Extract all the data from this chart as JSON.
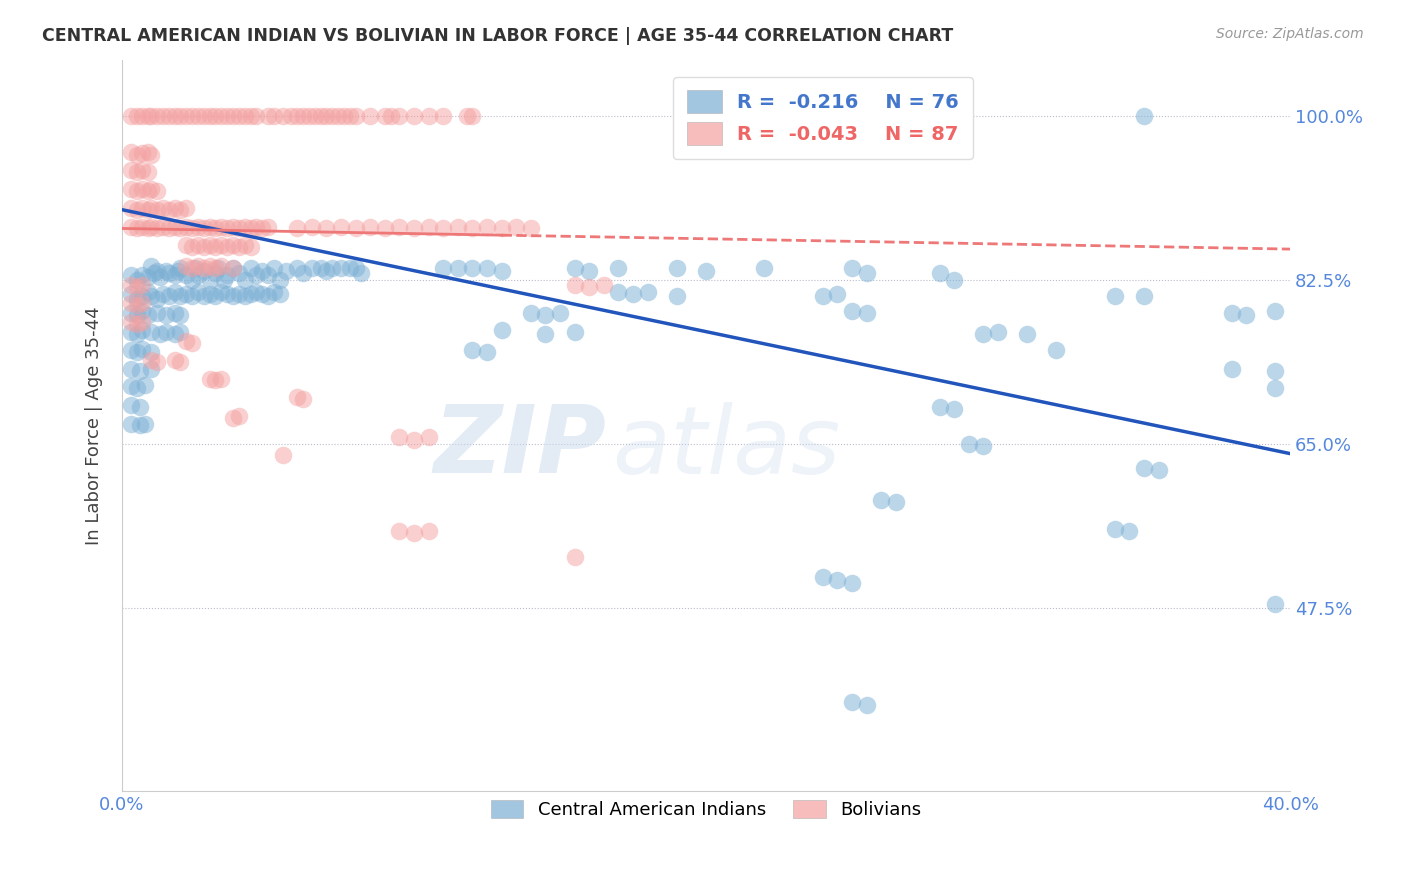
{
  "title": "CENTRAL AMERICAN INDIAN VS BOLIVIAN IN LABOR FORCE | AGE 35-44 CORRELATION CHART",
  "source": "Source: ZipAtlas.com",
  "ylabel": "In Labor Force | Age 35-44",
  "x_min": 0.0,
  "x_max": 0.4,
  "y_min": 0.28,
  "y_max": 1.06,
  "y_ticks": [
    0.475,
    0.65,
    0.825,
    1.0
  ],
  "y_tick_labels": [
    "47.5%",
    "65.0%",
    "82.5%",
    "100.0%"
  ],
  "legend_blue_label": "Central American Indians",
  "legend_pink_label": "Bolivians",
  "legend_r_blue": "R =  -0.216",
  "legend_n_blue": "N = 76",
  "legend_r_pink": "R =  -0.043",
  "legend_n_pink": "N = 87",
  "blue_color": "#7BAFD4",
  "pink_color": "#F4A0A0",
  "blue_line_color": "#2255BB",
  "pink_line_color": "#EE7777",
  "watermark_zip": "ZIP",
  "watermark_atlas": "atlas",
  "blue_scatter": [
    [
      0.003,
      0.83
    ],
    [
      0.005,
      0.825
    ],
    [
      0.007,
      0.83
    ],
    [
      0.009,
      0.828
    ],
    [
      0.01,
      0.84
    ],
    [
      0.011,
      0.832
    ],
    [
      0.012,
      0.835
    ],
    [
      0.013,
      0.828
    ],
    [
      0.015,
      0.835
    ],
    [
      0.016,
      0.832
    ],
    [
      0.018,
      0.83
    ],
    [
      0.019,
      0.835
    ],
    [
      0.02,
      0.838
    ],
    [
      0.022,
      0.83
    ],
    [
      0.024,
      0.825
    ],
    [
      0.025,
      0.838
    ],
    [
      0.026,
      0.83
    ],
    [
      0.028,
      0.835
    ],
    [
      0.03,
      0.825
    ],
    [
      0.032,
      0.832
    ],
    [
      0.033,
      0.838
    ],
    [
      0.035,
      0.825
    ],
    [
      0.036,
      0.83
    ],
    [
      0.038,
      0.838
    ],
    [
      0.04,
      0.832
    ],
    [
      0.042,
      0.825
    ],
    [
      0.044,
      0.838
    ],
    [
      0.046,
      0.83
    ],
    [
      0.048,
      0.835
    ],
    [
      0.05,
      0.83
    ],
    [
      0.052,
      0.838
    ],
    [
      0.054,
      0.825
    ],
    [
      0.056,
      0.835
    ],
    [
      0.06,
      0.838
    ],
    [
      0.062,
      0.832
    ],
    [
      0.065,
      0.838
    ],
    [
      0.068,
      0.838
    ],
    [
      0.07,
      0.835
    ],
    [
      0.072,
      0.838
    ],
    [
      0.075,
      0.838
    ],
    [
      0.078,
      0.838
    ],
    [
      0.08,
      0.838
    ],
    [
      0.082,
      0.832
    ],
    [
      0.003,
      0.81
    ],
    [
      0.005,
      0.805
    ],
    [
      0.007,
      0.808
    ],
    [
      0.009,
      0.812
    ],
    [
      0.01,
      0.808
    ],
    [
      0.012,
      0.805
    ],
    [
      0.014,
      0.81
    ],
    [
      0.016,
      0.808
    ],
    [
      0.018,
      0.812
    ],
    [
      0.02,
      0.808
    ],
    [
      0.022,
      0.81
    ],
    [
      0.024,
      0.808
    ],
    [
      0.026,
      0.812
    ],
    [
      0.028,
      0.808
    ],
    [
      0.03,
      0.81
    ],
    [
      0.032,
      0.808
    ],
    [
      0.034,
      0.812
    ],
    [
      0.036,
      0.81
    ],
    [
      0.038,
      0.808
    ],
    [
      0.04,
      0.81
    ],
    [
      0.042,
      0.808
    ],
    [
      0.044,
      0.81
    ],
    [
      0.046,
      0.812
    ],
    [
      0.048,
      0.81
    ],
    [
      0.05,
      0.808
    ],
    [
      0.052,
      0.812
    ],
    [
      0.054,
      0.81
    ],
    [
      0.003,
      0.79
    ],
    [
      0.005,
      0.788
    ],
    [
      0.007,
      0.792
    ],
    [
      0.009,
      0.788
    ],
    [
      0.012,
      0.79
    ],
    [
      0.015,
      0.788
    ],
    [
      0.018,
      0.79
    ],
    [
      0.02,
      0.788
    ],
    [
      0.003,
      0.77
    ],
    [
      0.005,
      0.768
    ],
    [
      0.007,
      0.772
    ],
    [
      0.01,
      0.77
    ],
    [
      0.013,
      0.768
    ],
    [
      0.015,
      0.77
    ],
    [
      0.018,
      0.768
    ],
    [
      0.02,
      0.77
    ],
    [
      0.003,
      0.75
    ],
    [
      0.005,
      0.748
    ],
    [
      0.007,
      0.752
    ],
    [
      0.01,
      0.748
    ],
    [
      0.003,
      0.73
    ],
    [
      0.006,
      0.728
    ],
    [
      0.01,
      0.73
    ],
    [
      0.003,
      0.712
    ],
    [
      0.005,
      0.71
    ],
    [
      0.008,
      0.713
    ],
    [
      0.003,
      0.692
    ],
    [
      0.006,
      0.69
    ],
    [
      0.003,
      0.672
    ],
    [
      0.006,
      0.67
    ],
    [
      0.008,
      0.672
    ],
    [
      0.11,
      0.838
    ],
    [
      0.115,
      0.838
    ],
    [
      0.12,
      0.838
    ],
    [
      0.125,
      0.838
    ],
    [
      0.13,
      0.835
    ],
    [
      0.155,
      0.838
    ],
    [
      0.16,
      0.835
    ],
    [
      0.17,
      0.838
    ],
    [
      0.19,
      0.838
    ],
    [
      0.2,
      0.835
    ],
    [
      0.22,
      0.838
    ],
    [
      0.17,
      0.812
    ],
    [
      0.175,
      0.81
    ],
    [
      0.18,
      0.812
    ],
    [
      0.19,
      0.808
    ],
    [
      0.14,
      0.79
    ],
    [
      0.145,
      0.788
    ],
    [
      0.15,
      0.79
    ],
    [
      0.13,
      0.772
    ],
    [
      0.145,
      0.768
    ],
    [
      0.155,
      0.77
    ],
    [
      0.12,
      0.75
    ],
    [
      0.125,
      0.748
    ],
    [
      0.25,
      0.838
    ],
    [
      0.255,
      0.832
    ],
    [
      0.28,
      0.832
    ],
    [
      0.285,
      0.825
    ],
    [
      0.24,
      0.808
    ],
    [
      0.245,
      0.81
    ],
    [
      0.25,
      0.792
    ],
    [
      0.255,
      0.79
    ],
    [
      0.34,
      0.808
    ],
    [
      0.35,
      0.808
    ],
    [
      0.38,
      0.79
    ],
    [
      0.385,
      0.788
    ],
    [
      0.395,
      0.792
    ],
    [
      0.295,
      0.768
    ],
    [
      0.3,
      0.77
    ],
    [
      0.31,
      0.768
    ],
    [
      0.32,
      0.75
    ],
    [
      0.35,
      1.0
    ],
    [
      0.38,
      0.73
    ],
    [
      0.395,
      0.728
    ],
    [
      0.395,
      0.71
    ],
    [
      0.28,
      0.69
    ],
    [
      0.285,
      0.688
    ],
    [
      0.29,
      0.65
    ],
    [
      0.295,
      0.648
    ],
    [
      0.35,
      0.625
    ],
    [
      0.355,
      0.622
    ],
    [
      0.26,
      0.59
    ],
    [
      0.265,
      0.588
    ],
    [
      0.34,
      0.56
    ],
    [
      0.345,
      0.558
    ],
    [
      0.395,
      0.48
    ],
    [
      0.24,
      0.508
    ],
    [
      0.245,
      0.505
    ],
    [
      0.25,
      0.502
    ],
    [
      0.25,
      0.375
    ],
    [
      0.255,
      0.372
    ]
  ],
  "pink_scatter": [
    [
      0.003,
      1.0
    ],
    [
      0.005,
      1.0
    ],
    [
      0.007,
      1.0
    ],
    [
      0.009,
      1.0
    ],
    [
      0.01,
      1.0
    ],
    [
      0.012,
      1.0
    ],
    [
      0.014,
      1.0
    ],
    [
      0.016,
      1.0
    ],
    [
      0.018,
      1.0
    ],
    [
      0.02,
      1.0
    ],
    [
      0.022,
      1.0
    ],
    [
      0.024,
      1.0
    ],
    [
      0.026,
      1.0
    ],
    [
      0.028,
      1.0
    ],
    [
      0.03,
      1.0
    ],
    [
      0.032,
      1.0
    ],
    [
      0.034,
      1.0
    ],
    [
      0.036,
      1.0
    ],
    [
      0.038,
      1.0
    ],
    [
      0.04,
      1.0
    ],
    [
      0.042,
      1.0
    ],
    [
      0.044,
      1.0
    ],
    [
      0.046,
      1.0
    ],
    [
      0.05,
      1.0
    ],
    [
      0.052,
      1.0
    ],
    [
      0.055,
      1.0
    ],
    [
      0.058,
      1.0
    ],
    [
      0.06,
      1.0
    ],
    [
      0.062,
      1.0
    ],
    [
      0.064,
      1.0
    ],
    [
      0.066,
      1.0
    ],
    [
      0.068,
      1.0
    ],
    [
      0.07,
      1.0
    ],
    [
      0.072,
      1.0
    ],
    [
      0.074,
      1.0
    ],
    [
      0.076,
      1.0
    ],
    [
      0.078,
      1.0
    ],
    [
      0.08,
      1.0
    ],
    [
      0.085,
      1.0
    ],
    [
      0.09,
      1.0
    ],
    [
      0.092,
      1.0
    ],
    [
      0.095,
      1.0
    ],
    [
      0.1,
      1.0
    ],
    [
      0.105,
      1.0
    ],
    [
      0.11,
      1.0
    ],
    [
      0.118,
      1.0
    ],
    [
      0.12,
      1.0
    ],
    [
      0.003,
      0.962
    ],
    [
      0.005,
      0.958
    ],
    [
      0.007,
      0.96
    ],
    [
      0.009,
      0.962
    ],
    [
      0.01,
      0.958
    ],
    [
      0.003,
      0.942
    ],
    [
      0.005,
      0.94
    ],
    [
      0.007,
      0.942
    ],
    [
      0.009,
      0.94
    ],
    [
      0.003,
      0.922
    ],
    [
      0.005,
      0.92
    ],
    [
      0.007,
      0.922
    ],
    [
      0.009,
      0.92
    ],
    [
      0.01,
      0.922
    ],
    [
      0.012,
      0.92
    ],
    [
      0.003,
      0.902
    ],
    [
      0.005,
      0.9
    ],
    [
      0.007,
      0.902
    ],
    [
      0.009,
      0.9
    ],
    [
      0.01,
      0.902
    ],
    [
      0.012,
      0.9
    ],
    [
      0.014,
      0.902
    ],
    [
      0.016,
      0.9
    ],
    [
      0.018,
      0.902
    ],
    [
      0.02,
      0.9
    ],
    [
      0.022,
      0.902
    ],
    [
      0.003,
      0.882
    ],
    [
      0.005,
      0.88
    ],
    [
      0.007,
      0.882
    ],
    [
      0.009,
      0.88
    ],
    [
      0.01,
      0.882
    ],
    [
      0.012,
      0.88
    ],
    [
      0.014,
      0.882
    ],
    [
      0.016,
      0.88
    ],
    [
      0.018,
      0.882
    ],
    [
      0.02,
      0.88
    ],
    [
      0.022,
      0.882
    ],
    [
      0.024,
      0.88
    ],
    [
      0.026,
      0.882
    ],
    [
      0.028,
      0.88
    ],
    [
      0.03,
      0.882
    ],
    [
      0.032,
      0.88
    ],
    [
      0.034,
      0.882
    ],
    [
      0.036,
      0.88
    ],
    [
      0.038,
      0.882
    ],
    [
      0.04,
      0.88
    ],
    [
      0.042,
      0.882
    ],
    [
      0.044,
      0.88
    ],
    [
      0.046,
      0.882
    ],
    [
      0.048,
      0.88
    ],
    [
      0.05,
      0.882
    ],
    [
      0.06,
      0.88
    ],
    [
      0.065,
      0.882
    ],
    [
      0.07,
      0.88
    ],
    [
      0.075,
      0.882
    ],
    [
      0.08,
      0.88
    ],
    [
      0.085,
      0.882
    ],
    [
      0.09,
      0.88
    ],
    [
      0.095,
      0.882
    ],
    [
      0.1,
      0.88
    ],
    [
      0.105,
      0.882
    ],
    [
      0.11,
      0.88
    ],
    [
      0.115,
      0.882
    ],
    [
      0.12,
      0.88
    ],
    [
      0.125,
      0.882
    ],
    [
      0.13,
      0.88
    ],
    [
      0.135,
      0.882
    ],
    [
      0.14,
      0.88
    ],
    [
      0.022,
      0.862
    ],
    [
      0.024,
      0.86
    ],
    [
      0.026,
      0.862
    ],
    [
      0.028,
      0.86
    ],
    [
      0.03,
      0.862
    ],
    [
      0.032,
      0.86
    ],
    [
      0.034,
      0.862
    ],
    [
      0.036,
      0.86
    ],
    [
      0.038,
      0.862
    ],
    [
      0.04,
      0.86
    ],
    [
      0.042,
      0.862
    ],
    [
      0.044,
      0.86
    ],
    [
      0.022,
      0.84
    ],
    [
      0.024,
      0.838
    ],
    [
      0.026,
      0.84
    ],
    [
      0.028,
      0.838
    ],
    [
      0.03,
      0.84
    ],
    [
      0.032,
      0.838
    ],
    [
      0.034,
      0.84
    ],
    [
      0.038,
      0.838
    ],
    [
      0.003,
      0.82
    ],
    [
      0.005,
      0.818
    ],
    [
      0.007,
      0.82
    ],
    [
      0.003,
      0.8
    ],
    [
      0.005,
      0.798
    ],
    [
      0.007,
      0.8
    ],
    [
      0.003,
      0.78
    ],
    [
      0.005,
      0.778
    ],
    [
      0.007,
      0.78
    ],
    [
      0.022,
      0.76
    ],
    [
      0.024,
      0.758
    ],
    [
      0.01,
      0.74
    ],
    [
      0.012,
      0.738
    ],
    [
      0.018,
      0.74
    ],
    [
      0.02,
      0.738
    ],
    [
      0.03,
      0.72
    ],
    [
      0.032,
      0.718
    ],
    [
      0.034,
      0.72
    ],
    [
      0.06,
      0.7
    ],
    [
      0.062,
      0.698
    ],
    [
      0.038,
      0.678
    ],
    [
      0.04,
      0.68
    ],
    [
      0.095,
      0.658
    ],
    [
      0.1,
      0.655
    ],
    [
      0.105,
      0.658
    ],
    [
      0.055,
      0.638
    ],
    [
      0.155,
      0.82
    ],
    [
      0.16,
      0.818
    ],
    [
      0.165,
      0.82
    ],
    [
      0.095,
      0.558
    ],
    [
      0.1,
      0.555
    ],
    [
      0.105,
      0.558
    ],
    [
      0.155,
      0.53
    ]
  ],
  "blue_trend_x": [
    0.0,
    0.4
  ],
  "blue_trend_y": [
    0.9,
    0.64
  ],
  "pink_trend_x": [
    0.0,
    0.4
  ],
  "pink_trend_y": [
    0.88,
    0.858
  ],
  "pink_trend_solid_end": 0.13
}
